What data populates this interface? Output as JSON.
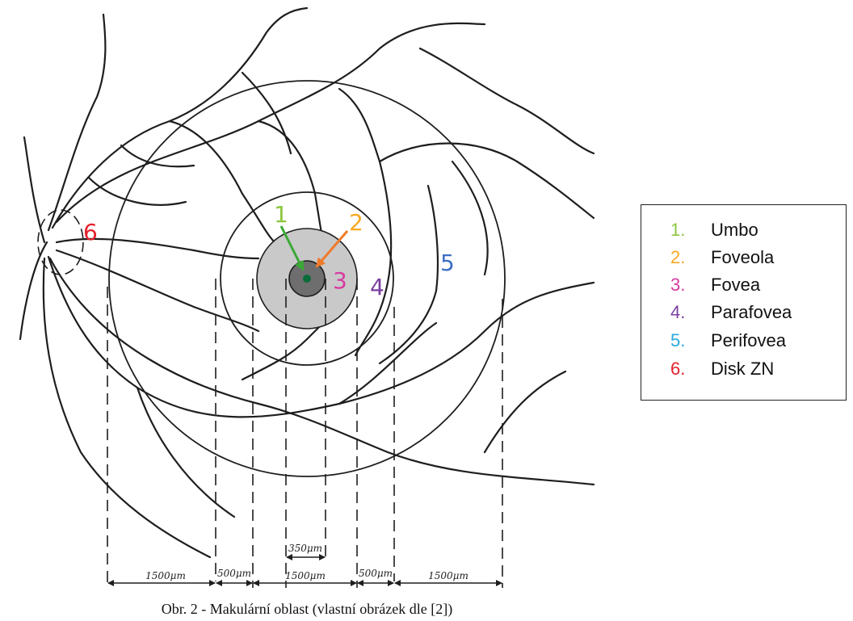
{
  "diagram": {
    "labels": [
      "1",
      "2",
      "3",
      "4",
      "5",
      "6"
    ],
    "dimensions": [
      "1500μm",
      "500μm",
      "1500μm",
      "500μm",
      "1500μm",
      "350μm"
    ]
  },
  "legend": {
    "items": [
      {
        "number": "1.",
        "label": "Umbo"
      },
      {
        "number": "2.",
        "label": "Foveola"
      },
      {
        "number": "3.",
        "label": "Fovea"
      },
      {
        "number": "4.",
        "label": "Parafovea"
      },
      {
        "number": "5.",
        "label": "Perifovea"
      },
      {
        "number": "6.",
        "label": "Disk ZN"
      }
    ]
  },
  "caption": "Obr. 2 - Makulární oblast (vlastní obrázek dle [2])"
}
